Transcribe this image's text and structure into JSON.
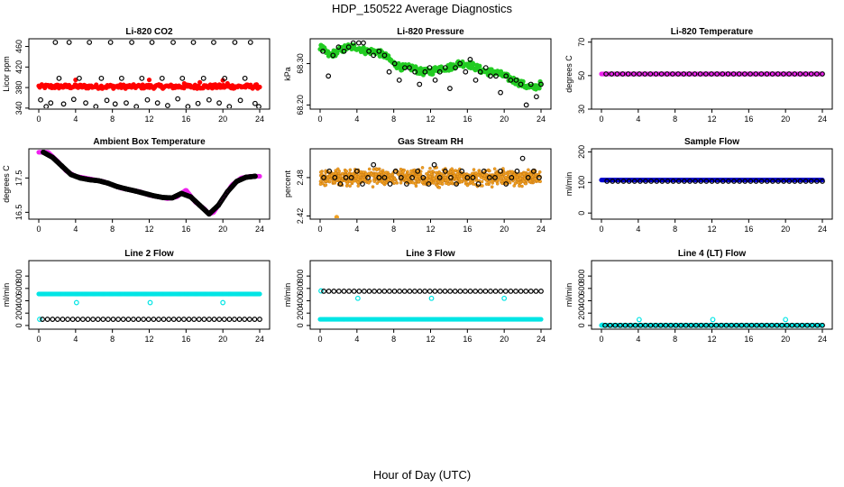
{
  "title": "HDP_150522  Average Diagnostics",
  "xlabel": "Hour of Day (UTC)",
  "colors": {
    "black": "#000000",
    "red": "#ff0000",
    "green": "#22cc22",
    "magenta": "#ee22ee",
    "orange": "#f0a020",
    "blue": "#0000cc",
    "cyan": "#00e5e5"
  },
  "chart_data": [
    {
      "type": "scatter",
      "title": "Li-820 CO2",
      "ylabel": "Licor ppm",
      "xticks": [
        0,
        4,
        8,
        12,
        16,
        20,
        24
      ],
      "yticks": [
        340,
        380,
        420,
        460
      ],
      "ylim": [
        338,
        475
      ],
      "xlim": [
        -1,
        25
      ],
      "series": [
        {
          "color": "red",
          "marker": "filled",
          "shape": "band",
          "x0": 0,
          "x1": 24,
          "y": 382,
          "spread": 4
        },
        {
          "color": "red",
          "marker": "filled",
          "x": [
            4.0,
            12.0,
            15.8,
            16.2,
            17.5,
            20.0,
            20.5
          ],
          "y": [
            395,
            395,
            388,
            385,
            390,
            394,
            388
          ]
        },
        {
          "color": "black",
          "marker": "open",
          "x": [
            0.2,
            0.8,
            1.3,
            1.8,
            2.2,
            2.7,
            3.3,
            3.8,
            4.4,
            5.1,
            5.5,
            6.2,
            6.8,
            7.4,
            7.8,
            8.3,
            9.0,
            9.5,
            10.1,
            10.6,
            11.2,
            11.8,
            12.3,
            12.9,
            13.4,
            14.0,
            14.6,
            15.1,
            15.6,
            16.2,
            16.8,
            17.3,
            17.9,
            18.5,
            19.0,
            19.6,
            20.2,
            20.7,
            21.3,
            21.9,
            22.4,
            23.0,
            23.5,
            23.9
          ],
          "y": [
            356,
            343,
            350,
            468,
            398,
            348,
            468,
            357,
            398,
            350,
            468,
            343,
            398,
            355,
            468,
            348,
            398,
            350,
            468,
            343,
            398,
            356,
            468,
            350,
            398,
            345,
            468,
            358,
            398,
            343,
            468,
            349,
            398,
            356,
            468,
            350,
            398,
            343,
            468,
            355,
            398,
            468,
            349,
            343
          ]
        }
      ]
    },
    {
      "type": "scatter",
      "title": "Li-820 Pressure",
      "ylabel": "kPa",
      "xticks": [
        0,
        4,
        8,
        12,
        16,
        20,
        24
      ],
      "yticks": [
        "68.20",
        "68.30"
      ],
      "ytick_vals": [
        68.2,
        68.3
      ],
      "ylim": [
        68.19,
        68.36
      ],
      "xlim": [
        -1,
        25
      ],
      "series": [
        {
          "color": "green",
          "marker": "filled",
          "shape": "trend",
          "spread": 0.008,
          "x": [
            0,
            1,
            2,
            3,
            4,
            5,
            6,
            7,
            8,
            9,
            10,
            11,
            12,
            13,
            14,
            15,
            16,
            17,
            18,
            19,
            20,
            21,
            22,
            23,
            24
          ],
          "y": [
            68.34,
            68.32,
            68.33,
            68.34,
            68.34,
            68.33,
            68.33,
            68.32,
            68.3,
            68.29,
            68.29,
            68.28,
            68.28,
            68.29,
            68.29,
            68.3,
            68.3,
            68.29,
            68.28,
            68.28,
            68.27,
            68.26,
            68.25,
            68.24,
            68.25
          ]
        },
        {
          "color": "black",
          "marker": "open",
          "x": [
            0.3,
            0.9,
            1.4,
            2.0,
            2.6,
            3.1,
            3.6,
            4.2,
            4.7,
            5.3,
            5.8,
            6.4,
            7.0,
            7.5,
            8.1,
            8.6,
            9.2,
            9.7,
            10.3,
            10.8,
            11.4,
            11.9,
            12.5,
            13.0,
            13.6,
            14.1,
            14.7,
            15.2,
            15.8,
            16.3,
            16.9,
            17.4,
            18.0,
            18.5,
            19.1,
            19.6,
            20.2,
            20.7,
            21.3,
            21.8,
            22.4,
            22.9,
            23.5,
            24.0
          ],
          "y": [
            68.33,
            68.27,
            68.32,
            68.34,
            68.33,
            68.34,
            68.35,
            68.35,
            68.35,
            68.33,
            68.32,
            68.33,
            68.32,
            68.28,
            68.3,
            68.26,
            68.29,
            68.29,
            68.28,
            68.25,
            68.28,
            68.29,
            68.26,
            68.28,
            68.29,
            68.24,
            68.29,
            68.3,
            68.28,
            68.31,
            68.26,
            68.28,
            68.29,
            68.27,
            68.27,
            68.23,
            68.27,
            68.26,
            68.26,
            68.25,
            68.2,
            68.25,
            68.22,
            68.25
          ]
        }
      ]
    },
    {
      "type": "scatter",
      "title": "Li-820 Temperature",
      "ylabel": "degrees C",
      "xticks": [
        0,
        4,
        8,
        12,
        16,
        20,
        24
      ],
      "yticks": [
        30,
        50,
        70
      ],
      "ylim": [
        30,
        72
      ],
      "xlim": [
        -1,
        25
      ],
      "series": [
        {
          "color": "magenta",
          "marker": "filled",
          "shape": "band",
          "x0": 0,
          "x1": 24,
          "y": 51,
          "spread": 0
        },
        {
          "color": "black",
          "marker": "open",
          "shape": "band",
          "x0": 0.5,
          "x1": 24,
          "y": 51,
          "spread": 0,
          "n": 40
        }
      ]
    },
    {
      "type": "scatter",
      "title": "Ambient Box Temperature",
      "ylabel": "degrees C",
      "xticks": [
        0,
        4,
        8,
        12,
        16,
        20,
        24
      ],
      "yticks": [
        "16.5",
        "17.5"
      ],
      "ytick_vals": [
        16.5,
        17.5
      ],
      "ylim": [
        16.3,
        18.35
      ],
      "xlim": [
        -1,
        25
      ],
      "series": [
        {
          "color": "magenta",
          "marker": "filled",
          "shape": "trend",
          "spread": 0,
          "x": [
            0,
            1,
            2,
            3,
            4,
            5,
            6,
            7,
            8,
            9,
            10,
            11,
            12,
            13,
            14,
            15,
            16,
            17,
            18,
            18.5,
            19,
            20,
            21,
            22,
            23,
            24
          ],
          "y": [
            18.25,
            18.25,
            18.0,
            17.7,
            17.55,
            17.5,
            17.45,
            17.4,
            17.3,
            17.2,
            17.15,
            17.1,
            17.0,
            16.95,
            16.9,
            16.95,
            17.15,
            16.8,
            16.6,
            16.45,
            16.5,
            16.9,
            17.3,
            17.5,
            17.55,
            17.55
          ]
        },
        {
          "color": "black",
          "marker": "open",
          "shape": "trend",
          "spread": 0,
          "x": [
            0.5,
            1.5,
            2.5,
            3.5,
            4.5,
            5.5,
            6.5,
            7.5,
            8.5,
            9.5,
            10.5,
            11.5,
            12.5,
            13.5,
            14.5,
            15.5,
            16.5,
            17.5,
            18.5,
            19.5,
            20.5,
            21.5,
            22.5,
            23.5
          ],
          "y": [
            18.25,
            18.1,
            17.85,
            17.6,
            17.5,
            17.45,
            17.42,
            17.35,
            17.25,
            17.18,
            17.12,
            17.05,
            16.98,
            16.93,
            16.92,
            17.05,
            16.95,
            16.7,
            16.45,
            16.7,
            17.1,
            17.4,
            17.52,
            17.55
          ]
        }
      ]
    },
    {
      "type": "scatter",
      "title": "Gas Stream RH",
      "ylabel": "percent",
      "xticks": [
        0,
        4,
        8,
        12,
        16,
        20,
        24
      ],
      "yticks": [
        "2.42",
        "2.48"
      ],
      "ytick_vals": [
        2.42,
        2.48
      ],
      "ylim": [
        2.415,
        2.525
      ],
      "xlim": [
        -1,
        25
      ],
      "series": [
        {
          "color": "orange",
          "marker": "filled",
          "shape": "noise",
          "x0": 0,
          "x1": 24,
          "y": 2.48,
          "spread": 0.018,
          "n": 900
        },
        {
          "color": "orange",
          "marker": "filled",
          "x": [
            1.8
          ],
          "y": [
            2.418
          ]
        },
        {
          "color": "black",
          "marker": "open",
          "x": [
            0.4,
            1.0,
            1.6,
            2.2,
            2.8,
            3.4,
            4.0,
            4.6,
            5.2,
            5.8,
            6.4,
            7.0,
            7.6,
            8.2,
            8.8,
            9.4,
            10.0,
            10.6,
            11.2,
            11.8,
            12.4,
            13.0,
            13.6,
            14.2,
            14.8,
            15.4,
            16.0,
            16.6,
            17.2,
            17.8,
            18.4,
            19.0,
            19.6,
            20.2,
            20.8,
            21.4,
            22.0,
            22.6,
            23.2,
            23.8
          ],
          "y": [
            2.48,
            2.49,
            2.48,
            2.47,
            2.48,
            2.48,
            2.49,
            2.47,
            2.48,
            2.5,
            2.48,
            2.48,
            2.47,
            2.49,
            2.48,
            2.47,
            2.48,
            2.49,
            2.48,
            2.47,
            2.5,
            2.48,
            2.49,
            2.48,
            2.47,
            2.49,
            2.48,
            2.48,
            2.47,
            2.49,
            2.48,
            2.48,
            2.49,
            2.47,
            2.48,
            2.49,
            2.51,
            2.48,
            2.49,
            2.48
          ]
        }
      ]
    },
    {
      "type": "scatter",
      "title": "Sample Flow",
      "ylabel": "ml/min",
      "xticks": [
        0,
        4,
        8,
        12,
        16,
        20,
        24
      ],
      "yticks": [
        0,
        100,
        200
      ],
      "ylim": [
        -20,
        210
      ],
      "xlim": [
        -1,
        25
      ],
      "series": [
        {
          "color": "blue",
          "marker": "filled",
          "shape": "band",
          "x0": 0,
          "x1": 24,
          "y": 108,
          "spread": 0
        },
        {
          "color": "black",
          "marker": "open",
          "shape": "band",
          "x0": 0.6,
          "x1": 24,
          "y": 104,
          "spread": 0,
          "n": 40
        }
      ]
    },
    {
      "type": "scatter",
      "title": "Line 2 Flow",
      "ylabel": "ml/min",
      "xticks": [
        0,
        4,
        8,
        12,
        16,
        20,
        24
      ],
      "yticks": [
        0,
        200,
        400,
        600,
        800
      ],
      "ylim": [
        -60,
        1050
      ],
      "xlim": [
        -1,
        25
      ],
      "series": [
        {
          "color": "cyan",
          "marker": "filled",
          "shape": "band",
          "x0": 0,
          "x1": 24,
          "y": 510,
          "spread": 0
        },
        {
          "color": "cyan",
          "marker": "open",
          "x": [
            0.1,
            4.1,
            12.1,
            20.0
          ],
          "y": [
            100,
            370,
            370,
            370
          ]
        },
        {
          "color": "black",
          "marker": "open",
          "shape": "band",
          "x0": 0.4,
          "x1": 24,
          "y": 100,
          "spread": 0,
          "n": 44
        }
      ]
    },
    {
      "type": "scatter",
      "title": "Line 3 Flow",
      "ylabel": "ml/min",
      "xticks": [
        0,
        4,
        8,
        12,
        16,
        20,
        24
      ],
      "yticks": [
        0,
        200,
        400,
        600,
        800
      ],
      "ylim": [
        -60,
        1050
      ],
      "xlim": [
        -1,
        25
      ],
      "series": [
        {
          "color": "cyan",
          "marker": "filled",
          "shape": "band",
          "x0": 0,
          "x1": 24,
          "y": 100,
          "spread": 0
        },
        {
          "color": "cyan",
          "marker": "open",
          "x": [
            0.1,
            4.1,
            12.1,
            20.0
          ],
          "y": [
            560,
            440,
            440,
            440
          ]
        },
        {
          "color": "black",
          "marker": "open",
          "shape": "band",
          "x0": 0.4,
          "x1": 24,
          "y": 555,
          "spread": 0,
          "n": 44
        }
      ]
    },
    {
      "type": "scatter",
      "title": "Line 4 (LT) Flow",
      "ylabel": "ml/min",
      "xticks": [
        0,
        4,
        8,
        12,
        16,
        20,
        24
      ],
      "yticks": [
        0,
        200,
        400,
        600,
        800
      ],
      "ylim": [
        -60,
        1050
      ],
      "xlim": [
        -1,
        25
      ],
      "series": [
        {
          "color": "cyan",
          "marker": "filled",
          "shape": "band",
          "x0": 0,
          "x1": 24,
          "y": 2,
          "spread": 0
        },
        {
          "color": "cyan",
          "marker": "open",
          "x": [
            0.1,
            4.1,
            12.1,
            20.0
          ],
          "y": [
            5,
            95,
            95,
            95
          ]
        },
        {
          "color": "black",
          "marker": "open",
          "shape": "band",
          "x0": 0.4,
          "x1": 24,
          "y": 2,
          "spread": 0,
          "n": 44
        }
      ]
    }
  ]
}
